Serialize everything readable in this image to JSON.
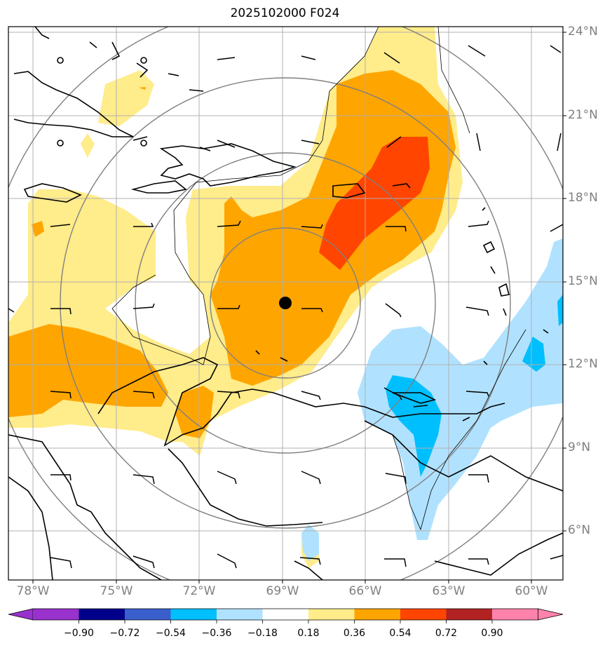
{
  "title": "2025102000 F024",
  "center_marker": "black-dot",
  "lat_labels": [
    "24°N",
    "21°N",
    "18°N",
    "15°N",
    "12°N",
    "9°N",
    "6°N"
  ],
  "lon_labels": [
    "78°W",
    "75°W",
    "72°W",
    "69°W",
    "66°W",
    "63°W",
    "60°W"
  ],
  "colorbar": {
    "ticks": [
      "−0.90",
      "−0.72",
      "−0.54",
      "−0.36",
      "−0.18",
      "0.18",
      "0.36",
      "0.54",
      "0.72",
      "0.90"
    ],
    "colors": [
      "#9932cc",
      "#00008b",
      "#3a5fcd",
      "#00bfff",
      "#b0e2ff",
      "#ffffff",
      "#ffec8b",
      "#ffa500",
      "#ff4500",
      "#b22222",
      "#ff82ab"
    ]
  },
  "fill_colors": {
    "neg_light": "#b0e2ff",
    "neg_mid": "#00bfff",
    "pos_light": "#ffec8b",
    "pos_mid": "#ffa500",
    "pos_high": "#ff4500"
  }
}
